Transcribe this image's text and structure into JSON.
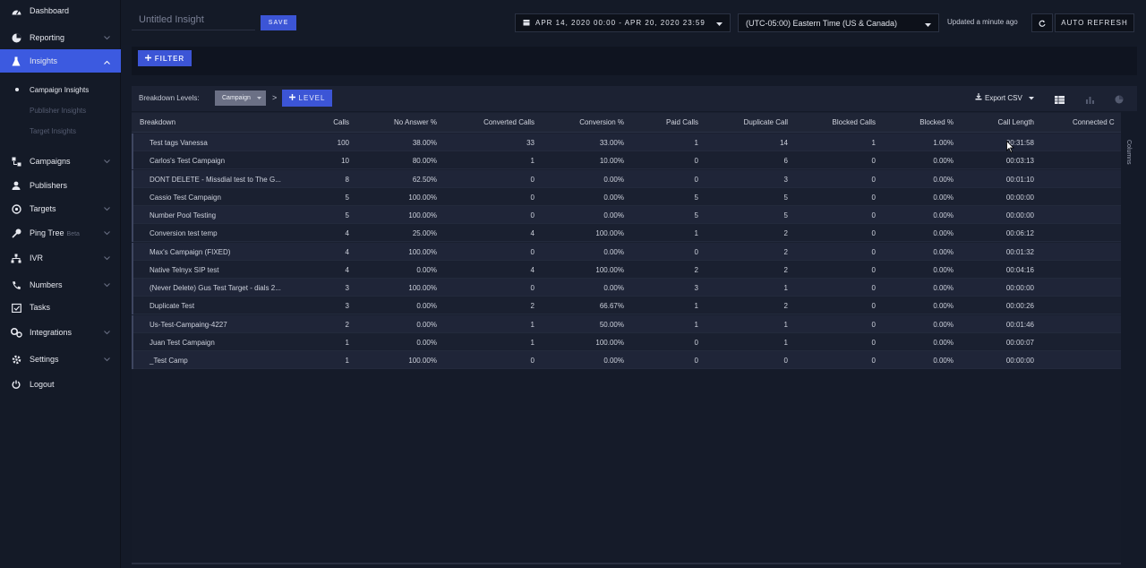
{
  "sidebar": {
    "items": [
      {
        "label": "Dashboard",
        "icon": "dashboard-icon"
      },
      {
        "label": "Reporting",
        "icon": "reporting-icon",
        "chevron": "down"
      },
      {
        "label": "Insights",
        "icon": "flask-icon",
        "chevron": "up",
        "active": true
      },
      {
        "label": "Campaigns",
        "icon": "campaigns-icon",
        "chevron": "down"
      },
      {
        "label": "Publishers",
        "icon": "publishers-icon"
      },
      {
        "label": "Targets",
        "icon": "target-icon",
        "chevron": "down"
      },
      {
        "label": "Ping Tree",
        "badge": "Beta",
        "icon": "ping-tree-icon",
        "chevron": "down"
      },
      {
        "label": "IVR",
        "icon": "ivr-icon",
        "chevron": "down"
      },
      {
        "label": "Numbers",
        "icon": "phone-icon",
        "chevron": "down"
      },
      {
        "label": "Tasks",
        "icon": "tasks-icon"
      },
      {
        "label": "Integrations",
        "icon": "integrations-icon",
        "chevron": "down"
      },
      {
        "label": "Settings",
        "icon": "settings-icon",
        "chevron": "down"
      },
      {
        "label": "Logout",
        "icon": "power-icon"
      }
    ],
    "sub_items": [
      {
        "label": "Campaign Insights",
        "active": true
      },
      {
        "label": "Publisher Insights"
      },
      {
        "label": "Target Insights"
      }
    ]
  },
  "header": {
    "insight_name_placeholder": "Untitled Insight",
    "save_label": "SAVE",
    "date_range": "APR 14, 2020 00:00 - APR 20, 2020 23:59",
    "timezone": "(UTC-05:00) Eastern Time (US & Canada)",
    "updated": "Updated a minute ago",
    "auto_refresh_label": "AUTO REFRESH"
  },
  "filter": {
    "label": "FILTER"
  },
  "breakdown": {
    "label": "Breakdown Levels:",
    "level": "Campaign",
    "separator": ">",
    "add_level_label": "LEVEL",
    "export_label": "Export CSV",
    "columns_label": "Columns"
  },
  "colors": {
    "accent": "#3c55d6",
    "active_nav": "#3c5ae0"
  },
  "table": {
    "columns": [
      "Breakdown",
      "Calls",
      "No Answer %",
      "Converted Calls",
      "Conversion %",
      "Paid Calls",
      "Duplicate Call",
      "Blocked Calls",
      "Blocked %",
      "Call Length",
      "Connected C"
    ],
    "rows": [
      [
        "Test tags Vanessa",
        "100",
        "38.00%",
        "33",
        "33.00%",
        "1",
        "14",
        "1",
        "1.00%",
        "00:31:58"
      ],
      [
        "Carlos's Test Campaign",
        "10",
        "80.00%",
        "1",
        "10.00%",
        "0",
        "6",
        "0",
        "0.00%",
        "00:03:13"
      ],
      [
        "DONT DELETE - Missdial test to The G...",
        "8",
        "62.50%",
        "0",
        "0.00%",
        "0",
        "3",
        "0",
        "0.00%",
        "00:01:10"
      ],
      [
        "Cassio Test Campaign",
        "5",
        "100.00%",
        "0",
        "0.00%",
        "5",
        "5",
        "0",
        "0.00%",
        "00:00:00"
      ],
      [
        "Number Pool Testing",
        "5",
        "100.00%",
        "0",
        "0.00%",
        "5",
        "5",
        "0",
        "0.00%",
        "00:00:00"
      ],
      [
        "Conversion test temp",
        "4",
        "25.00%",
        "4",
        "100.00%",
        "1",
        "2",
        "0",
        "0.00%",
        "00:06:12"
      ],
      [
        "Max's Campaign (FIXED)",
        "4",
        "100.00%",
        "0",
        "0.00%",
        "0",
        "2",
        "0",
        "0.00%",
        "00:01:32"
      ],
      [
        "Native Telnyx SIP test",
        "4",
        "0.00%",
        "4",
        "100.00%",
        "2",
        "2",
        "0",
        "0.00%",
        "00:04:16"
      ],
      [
        "(Never Delete) Gus Test Target - dials 2...",
        "3",
        "100.00%",
        "0",
        "0.00%",
        "3",
        "1",
        "0",
        "0.00%",
        "00:00:00"
      ],
      [
        "Duplicate Test",
        "3",
        "0.00%",
        "2",
        "66.67%",
        "1",
        "2",
        "0",
        "0.00%",
        "00:00:26"
      ],
      [
        "Us-Test-Campaing-4227",
        "2",
        "0.00%",
        "1",
        "50.00%",
        "1",
        "1",
        "0",
        "0.00%",
        "00:01:46"
      ],
      [
        "Juan Test Campaign",
        "1",
        "0.00%",
        "1",
        "100.00%",
        "0",
        "1",
        "0",
        "0.00%",
        "00:00:07"
      ],
      [
        "_Test Camp",
        "1",
        "100.00%",
        "0",
        "0.00%",
        "0",
        "0",
        "0",
        "0.00%",
        "00:00:00"
      ]
    ]
  }
}
